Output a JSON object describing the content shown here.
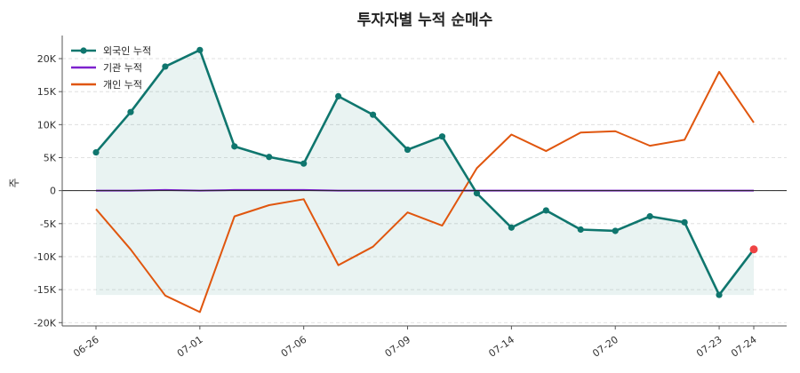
{
  "chart_data": {
    "type": "line",
    "title": "투자자별 누적 순매수",
    "ylabel": "주",
    "xlabel": "",
    "ylim": [
      -20500,
      23500
    ],
    "yticks": [
      -20000,
      -15000,
      -10000,
      -5000,
      0,
      5000,
      10000,
      15000,
      20000
    ],
    "ytick_labels": [
      "-20K",
      "-15K",
      "-10K",
      "-5K",
      "0",
      "5K",
      "10K",
      "15K",
      "20K"
    ],
    "x": [
      "06-26",
      "06-27",
      "06-30",
      "07-01",
      "07-02",
      "07-03",
      "07-06",
      "07-07",
      "07-08",
      "07-09",
      "07-10",
      "07-13",
      "07-14",
      "07-15",
      "07-16",
      "07-20",
      "07-21",
      "07-22",
      "07-23",
      "07-24"
    ],
    "xtick_labels": [
      "06-26",
      "07-01",
      "07-06",
      "07-09",
      "07-14",
      "07-20",
      "07-23",
      "07-24"
    ],
    "grid": "horizontal dashed",
    "legend_position": "top-left",
    "zero_line": true,
    "series": [
      {
        "name": "외국인 누적",
        "color": "#0f766e",
        "markers": true,
        "fill": true,
        "last_point_color": "#ef4444",
        "values": [
          5800,
          11900,
          18800,
          21300,
          6700,
          5100,
          4100,
          14300,
          11500,
          6200,
          8200,
          -400,
          -5600,
          -3000,
          -5900,
          -6100,
          -3900,
          -4800,
          -15800,
          -8900
        ]
      },
      {
        "name": "기관 누적",
        "color": "#7e22ce",
        "markers": false,
        "fill": false,
        "values": [
          0,
          0,
          100,
          0,
          100,
          100,
          100,
          0,
          0,
          0,
          0,
          0,
          0,
          0,
          0,
          0,
          0,
          0,
          0,
          0
        ]
      },
      {
        "name": "개인 누적",
        "color": "#e0560e",
        "markers": false,
        "fill": false,
        "values": [
          -2800,
          -8900,
          -15900,
          -18400,
          -3900,
          -2200,
          -1300,
          -11300,
          -8500,
          -3300,
          -5300,
          3400,
          8500,
          6000,
          8800,
          9000,
          6800,
          7700,
          18000,
          10300
        ]
      }
    ]
  }
}
